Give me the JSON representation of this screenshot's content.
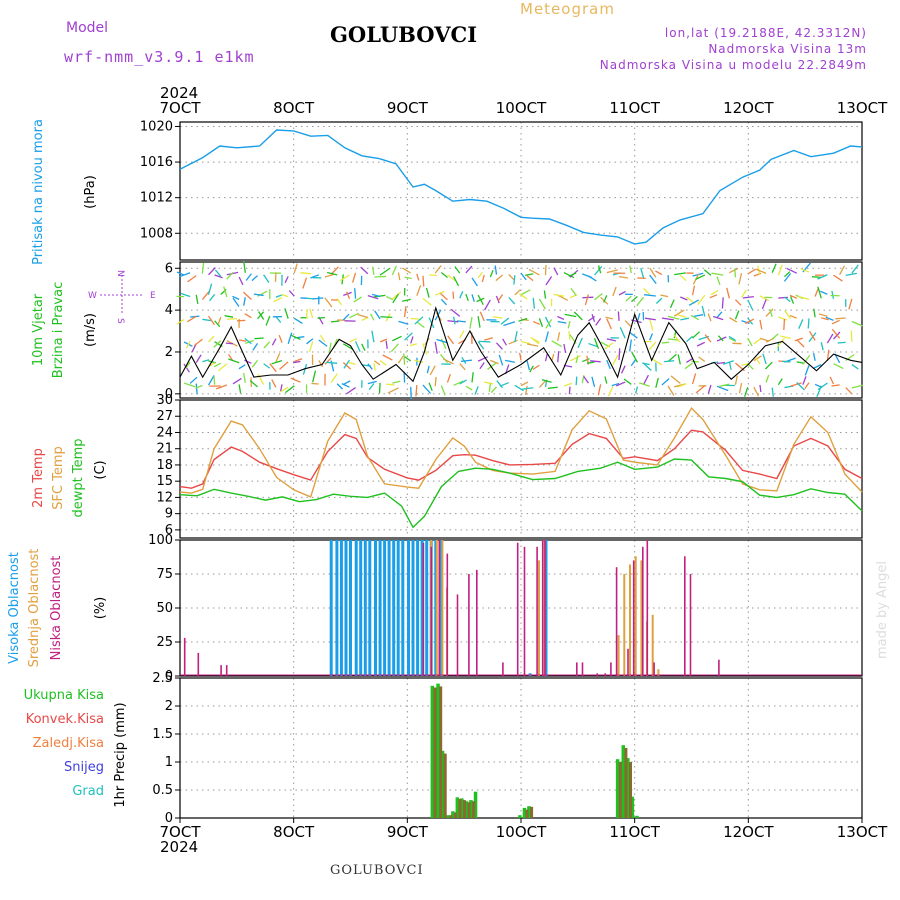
{
  "header": {
    "model_label": "Model",
    "model_name": "wrf-nmm_v3.9.1 e1km",
    "title": "GOLUBOVCI",
    "meteogram_label": "Meteogram",
    "lonlat": "lon,lat (19.2188E, 42.3312N)",
    "elevation": "Nadmorska Visina 13m",
    "model_elevation": "Nadmorska Visina u modelu 22.2849m",
    "year_top": "2024",
    "year_bottom": "2024"
  },
  "footer": {
    "station": "GOLUBOVCI",
    "credit": "made by Angel"
  },
  "colors": {
    "pressure": "#1a9ee8",
    "t2m": "#e84848",
    "sfc": "#e0a040",
    "dewpoint": "#20c020",
    "high_cloud": "#1a9ee8",
    "mid_cloud": "#e0a040",
    "low_cloud": "#c02080",
    "total_precip": "#20c020",
    "conv_precip": "#e84848",
    "strat_precip": "#f08040",
    "snow": "#4040e0",
    "hail": "#20c0c0",
    "wind_speed": "#000000",
    "wind_gust": "#e84848"
  },
  "chart_data": [
    {
      "type": "line",
      "panel": "pressure",
      "title": "",
      "ylabel_main": "Pritisak na nivou mora",
      "ylabel_unit": "(hPa)",
      "x_ticks": [
        "7OCT",
        "8OCT",
        "9OCT",
        "10OCT",
        "11OCT",
        "12OCT",
        "13OCT"
      ],
      "xlim": [
        7,
        13
      ],
      "ylim": [
        1005,
        1020.5
      ],
      "y_ticks": [
        1008,
        1012,
        1016,
        1020
      ],
      "series": [
        {
          "name": "",
          "x": [
            7.0,
            7.2,
            7.35,
            7.5,
            7.7,
            7.85,
            8.0,
            8.15,
            8.3,
            8.45,
            8.6,
            8.75,
            8.9,
            9.05,
            9.15,
            9.25,
            9.4,
            9.55,
            9.7,
            9.85,
            10.0,
            10.1,
            10.25,
            10.4,
            10.55,
            10.7,
            10.85,
            11.0,
            11.1,
            11.25,
            11.4,
            11.6,
            11.75,
            11.95,
            12.1,
            12.2,
            12.4,
            12.55,
            12.75,
            12.9,
            13.0
          ],
          "y": [
            1015.2,
            1016.5,
            1017.8,
            1017.6,
            1017.8,
            1019.6,
            1019.5,
            1018.9,
            1019.0,
            1017.6,
            1016.7,
            1016.4,
            1015.8,
            1013.2,
            1013.5,
            1012.8,
            1011.6,
            1011.8,
            1011.6,
            1010.8,
            1009.8,
            1009.7,
            1009.6,
            1008.9,
            1008.1,
            1007.8,
            1007.6,
            1006.8,
            1007.0,
            1008.6,
            1009.5,
            1010.2,
            1012.8,
            1014.3,
            1015.1,
            1016.3,
            1017.3,
            1016.6,
            1017.0,
            1017.8,
            1017.7
          ]
        }
      ]
    },
    {
      "type": "line",
      "panel": "wind",
      "ylabel_main": "10m Vjetar",
      "ylabel_sub": "Brzina i Pravac",
      "ylabel_unit": "(m/s)",
      "compass": {
        "n": "N",
        "s": "S",
        "e": "E",
        "w": "W"
      },
      "xlim": [
        7,
        13
      ],
      "ylim": [
        -0.2,
        6.3
      ],
      "y_ticks": [
        0,
        2,
        4,
        6
      ],
      "series": [
        {
          "name": "",
          "x": [
            7.0,
            7.1,
            7.2,
            7.35,
            7.45,
            7.55,
            7.65,
            7.8,
            7.95,
            8.1,
            8.25,
            8.4,
            8.5,
            8.6,
            8.7,
            8.9,
            9.05,
            9.15,
            9.25,
            9.4,
            9.55,
            9.65,
            9.8,
            10.0,
            10.2,
            10.35,
            10.5,
            10.6,
            10.7,
            10.85,
            11.0,
            11.15,
            11.3,
            11.45,
            11.55,
            11.7,
            11.85,
            12.0,
            12.15,
            12.3,
            12.45,
            12.6,
            12.75,
            12.9,
            13.0
          ],
          "y": [
            0.8,
            1.8,
            0.8,
            2.2,
            3.2,
            2.0,
            0.8,
            0.9,
            0.9,
            1.2,
            1.4,
            2.6,
            2.3,
            1.4,
            0.7,
            1.4,
            0.6,
            2.0,
            4.1,
            1.6,
            3.0,
            2.0,
            0.8,
            1.4,
            2.2,
            0.9,
            2.8,
            3.4,
            2.4,
            0.8,
            3.8,
            1.6,
            3.4,
            2.4,
            1.2,
            1.5,
            0.7,
            1.4,
            2.3,
            2.5,
            1.8,
            1.1,
            1.9,
            1.6,
            1.5
          ]
        }
      ]
    },
    {
      "type": "line",
      "panel": "temperature",
      "ylabel_main": "2m Temp",
      "ylabel_sub": "SFC Temp",
      "ylabel_sub2": "dewpt Temp",
      "ylabel_unit": "(C)",
      "xlim": [
        7,
        13
      ],
      "ylim": [
        4.5,
        30
      ],
      "y_ticks": [
        6,
        9,
        12,
        15,
        18,
        21,
        24,
        27,
        30
      ],
      "series": [
        {
          "name": "",
          "key": "t2m",
          "x": [
            7.0,
            7.1,
            7.2,
            7.3,
            7.45,
            7.55,
            7.7,
            7.85,
            8.0,
            8.15,
            8.3,
            8.45,
            8.55,
            8.65,
            8.8,
            9.0,
            9.1,
            9.25,
            9.4,
            9.5,
            9.6,
            9.75,
            9.9,
            10.1,
            10.3,
            10.45,
            10.6,
            10.75,
            10.9,
            11.0,
            11.2,
            11.35,
            11.5,
            11.6,
            11.8,
            11.95,
            12.1,
            12.25,
            12.4,
            12.55,
            12.7,
            12.85,
            13.0
          ],
          "y": [
            14,
            13.7,
            14.5,
            19,
            21.3,
            20.5,
            18.5,
            17.3,
            16.2,
            15.2,
            20.5,
            23.6,
            22.9,
            19.4,
            17.2,
            15.6,
            15.2,
            17,
            19.7,
            19.9,
            19.8,
            18.8,
            18,
            18.1,
            18.3,
            21.8,
            23.8,
            22.9,
            19.2,
            19.5,
            18.8,
            21,
            24.4,
            24.1,
            20.7,
            17,
            16.3,
            15.5,
            21.5,
            22.9,
            21.5,
            17.2,
            15.5
          ]
        },
        {
          "name": "",
          "key": "sfc",
          "x": [
            7.0,
            7.1,
            7.2,
            7.3,
            7.45,
            7.55,
            7.7,
            7.85,
            8.0,
            8.15,
            8.3,
            8.45,
            8.55,
            8.65,
            8.8,
            9.0,
            9.1,
            9.25,
            9.4,
            9.5,
            9.6,
            9.75,
            9.9,
            10.1,
            10.3,
            10.45,
            10.6,
            10.75,
            10.9,
            11.0,
            11.2,
            11.35,
            11.5,
            11.6,
            11.8,
            11.95,
            12.1,
            12.25,
            12.4,
            12.55,
            12.7,
            12.85,
            13.0
          ],
          "y": [
            13,
            12.8,
            13.5,
            21,
            26.1,
            25.4,
            21,
            15.7,
            13.4,
            12.1,
            22.4,
            27.6,
            26.4,
            19.6,
            14.5,
            13.9,
            13.7,
            19,
            23,
            21.5,
            18.5,
            17,
            16.5,
            16.3,
            16.8,
            24.5,
            28,
            26.5,
            18.9,
            18.5,
            18,
            23,
            28.5,
            26.4,
            19.8,
            14.5,
            13.4,
            13.2,
            21.8,
            26.9,
            24,
            16.3,
            13
          ]
        },
        {
          "name": "",
          "key": "dewpoint",
          "x": [
            7.0,
            7.15,
            7.3,
            7.45,
            7.6,
            7.75,
            7.9,
            8.05,
            8.2,
            8.35,
            8.5,
            8.65,
            8.8,
            8.95,
            9.05,
            9.15,
            9.3,
            9.45,
            9.6,
            9.75,
            9.9,
            10.1,
            10.3,
            10.5,
            10.7,
            10.85,
            11.0,
            11.2,
            11.35,
            11.5,
            11.65,
            11.8,
            11.95,
            12.1,
            12.25,
            12.4,
            12.55,
            12.7,
            12.85,
            13.0
          ],
          "y": [
            12.5,
            12.3,
            13.5,
            12.8,
            12.2,
            11.5,
            12.1,
            11.2,
            11.6,
            12.6,
            12.2,
            12.0,
            12.8,
            10.4,
            6.5,
            8.5,
            14,
            16.8,
            17.4,
            17.2,
            16.5,
            15.3,
            15.5,
            16.8,
            17.4,
            18.5,
            17.2,
            17.6,
            19.1,
            18.9,
            15.8,
            15.5,
            14.9,
            12.4,
            12,
            12.5,
            13.6,
            12.9,
            12.6,
            9.5
          ]
        }
      ]
    },
    {
      "type": "bar",
      "panel": "cloud",
      "ylabel_main": "Visoka Oblacnost",
      "ylabel_sub": "Srednja Oblacnost",
      "ylabel_sub2": "Niska Oblacnost",
      "ylabel_unit": "(%)",
      "xlim": [
        7,
        13
      ],
      "ylim": [
        0,
        100
      ],
      "y_ticks": [
        0,
        25,
        50,
        75,
        100
      ],
      "series": [
        {
          "name": "",
          "key": "high",
          "x": [
            8.33,
            8.38,
            8.42,
            8.46,
            8.5,
            8.55,
            8.59,
            8.63,
            8.67,
            8.72,
            8.76,
            8.8,
            8.84,
            8.88,
            8.92,
            8.96,
            9.01,
            9.05,
            9.09,
            9.13,
            9.17,
            9.21,
            9.25,
            9.29,
            10.08,
            10.22
          ],
          "y": [
            100,
            100,
            100,
            100,
            100,
            100,
            100,
            100,
            100,
            100,
            100,
            100,
            100,
            100,
            100,
            100,
            100,
            100,
            100,
            100,
            100,
            100,
            100,
            100,
            2,
            100
          ]
        },
        {
          "name": "",
          "key": "mid",
          "x": [
            9.2,
            9.25,
            9.3,
            9.34,
            10.15,
            10.2,
            10.85,
            10.9,
            10.95,
            11.0,
            11.05,
            11.1,
            11.15,
            11.2
          ],
          "y": [
            100,
            100,
            100,
            65,
            85,
            100,
            30,
            75,
            82,
            88,
            85,
            40,
            45,
            5
          ]
        },
        {
          "name": "",
          "key": "low",
          "x": [
            7.05,
            7.17,
            7.37,
            7.42,
            9.15,
            9.22,
            9.29,
            9.36,
            9.45,
            9.55,
            9.62,
            9.85,
            9.98,
            10.04,
            10.15,
            10.2,
            10.22,
            10.5,
            10.55,
            10.68,
            10.75,
            10.8,
            10.85,
            10.95,
            11.0,
            11.08,
            11.12,
            11.18,
            11.45,
            11.5,
            11.75
          ],
          "y": [
            28,
            17,
            8,
            8,
            98,
            95,
            100,
            90,
            60,
            75,
            78,
            10,
            98,
            95,
            95,
            100,
            100,
            10,
            10,
            2,
            2,
            10,
            80,
            20,
            85,
            95,
            100,
            10,
            88,
            75,
            12
          ]
        }
      ]
    },
    {
      "type": "bar",
      "panel": "precip",
      "ylabel_main": "1hr Precip",
      "ylabel_unit": "(mm)",
      "legend": [
        "Ukupna Kisa",
        "Konvek.Kisa",
        "Zaledj.Kisa",
        "Snijeg",
        "Grad"
      ],
      "xlim": [
        7,
        13
      ],
      "ylim": [
        0,
        2.5
      ],
      "y_ticks": [
        0,
        0.5,
        1,
        1.5,
        2,
        2.5
      ],
      "series": [
        {
          "name": "Ukupna Kisa",
          "key": "total",
          "x": [
            9.22,
            9.27,
            9.31,
            9.36,
            9.4,
            9.44,
            9.48,
            9.52,
            9.56,
            9.6,
            9.99,
            10.03,
            10.07,
            10.85,
            10.9,
            10.94,
            10.98,
            11.02
          ],
          "y": [
            2.36,
            2.4,
            1.2,
            0.05,
            0.12,
            0.37,
            0.35,
            0.3,
            0.32,
            0.47,
            0.05,
            0.18,
            0.21,
            1.05,
            1.3,
            1.07,
            0.38,
            0.04
          ]
        },
        {
          "name": "Konvek.Kisa",
          "key": "conv",
          "x": [
            9.23,
            9.28,
            9.32,
            9.37,
            9.41,
            9.45,
            9.49,
            9.53,
            9.57,
            10.04,
            10.08,
            10.86,
            10.91,
            10.95
          ],
          "y": [
            2.33,
            2.35,
            1.15,
            0.05,
            0.1,
            0.34,
            0.32,
            0.28,
            0.3,
            0.15,
            0.2,
            1.0,
            1.25,
            1.0
          ]
        }
      ]
    }
  ]
}
